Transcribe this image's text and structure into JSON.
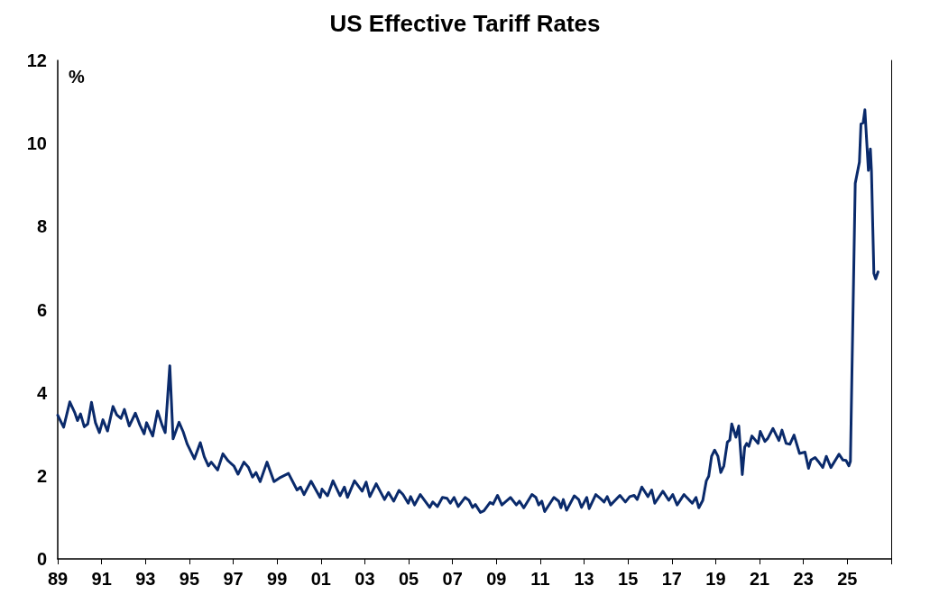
{
  "chart_data": {
    "type": "line",
    "title": "US Effective Tariff Rates",
    "ylabel": "%",
    "xlim": [
      1989,
      2027
    ],
    "ylim": [
      0,
      12
    ],
    "yticks": [
      0,
      2,
      4,
      6,
      8,
      10,
      12
    ],
    "xticks": [
      {
        "value": 1989,
        "label": "89"
      },
      {
        "value": 1991,
        "label": "91"
      },
      {
        "value": 1993,
        "label": "93"
      },
      {
        "value": 1995,
        "label": "95"
      },
      {
        "value": 1997,
        "label": "97"
      },
      {
        "value": 1999,
        "label": "99"
      },
      {
        "value": 2001,
        "label": "01"
      },
      {
        "value": 2003,
        "label": "03"
      },
      {
        "value": 2005,
        "label": "05"
      },
      {
        "value": 2007,
        "label": "07"
      },
      {
        "value": 2009,
        "label": "09"
      },
      {
        "value": 2011,
        "label": "11"
      },
      {
        "value": 2013,
        "label": "13"
      },
      {
        "value": 2015,
        "label": "15"
      },
      {
        "value": 2017,
        "label": "17"
      },
      {
        "value": 2019,
        "label": "19"
      },
      {
        "value": 2021,
        "label": "21"
      },
      {
        "value": 2023,
        "label": "23"
      },
      {
        "value": 2025,
        "label": "25"
      },
      {
        "value": 2027,
        "label": null
      }
    ],
    "grid": false,
    "marker": "none",
    "line_style": "solid",
    "series": [
      {
        "color": "#0a2a6b",
        "x": [
          1989.0,
          1989.27,
          1989.55,
          1989.77,
          1989.9,
          1990.04,
          1990.21,
          1990.37,
          1990.54,
          1990.72,
          1990.9,
          1991.06,
          1991.27,
          1991.52,
          1991.69,
          1991.88,
          1992.04,
          1992.26,
          1992.54,
          1992.75,
          1992.94,
          1993.05,
          1993.33,
          1993.55,
          1993.76,
          1993.9,
          1994.11,
          1994.26,
          1994.53,
          1994.72,
          1994.9,
          1995.23,
          1995.5,
          1995.68,
          1995.87,
          1996.0,
          1996.29,
          1996.53,
          1996.77,
          1997.03,
          1997.22,
          1997.49,
          1997.69,
          1997.88,
          1998.04,
          1998.23,
          1998.54,
          1998.86,
          1999.11,
          1999.52,
          1999.91,
          2000.07,
          2000.23,
          2000.55,
          2000.96,
          2001.05,
          2001.3,
          2001.55,
          2001.87,
          2002.07,
          2002.21,
          2002.53,
          2002.88,
          2003.06,
          2003.23,
          2003.52,
          2003.9,
          2004.08,
          2004.32,
          2004.56,
          2004.74,
          2004.98,
          2005.09,
          2005.27,
          2005.53,
          2005.96,
          2006.1,
          2006.31,
          2006.54,
          2006.75,
          2006.9,
          2007.07,
          2007.26,
          2007.57,
          2007.75,
          2007.91,
          2008.04,
          2008.27,
          2008.43,
          2008.71,
          2008.85,
          2009.05,
          2009.25,
          2009.64,
          2009.91,
          2010.05,
          2010.25,
          2010.62,
          2010.8,
          2010.93,
          2011.07,
          2011.2,
          2011.62,
          2011.84,
          2011.94,
          2012.05,
          2012.2,
          2012.55,
          2012.75,
          2012.88,
          2013.12,
          2013.23,
          2013.53,
          2013.75,
          2013.91,
          2014.05,
          2014.21,
          2014.63,
          2014.88,
          2015.08,
          2015.28,
          2015.42,
          2015.63,
          2015.91,
          2016.08,
          2016.22,
          2016.59,
          2016.86,
          2017.04,
          2017.24,
          2017.55,
          2017.93,
          2018.1,
          2018.23,
          2018.41,
          2018.57,
          2018.68,
          2018.81,
          2018.95,
          2019.1,
          2019.23,
          2019.37,
          2019.53,
          2019.64,
          2019.73,
          2019.92,
          2020.05,
          2020.21,
          2020.32,
          2020.41,
          2020.51,
          2020.65,
          2020.93,
          2021.03,
          2021.24,
          2021.37,
          2021.61,
          2021.88,
          2022.02,
          2022.21,
          2022.38,
          2022.57,
          2022.82,
          2023.07,
          2023.23,
          2023.34,
          2023.53,
          2023.67,
          2023.88,
          2024.04,
          2024.25,
          2024.62,
          2024.8,
          2024.94,
          2025.07,
          2025.14,
          2025.36,
          2025.55,
          2025.62,
          2025.72,
          2025.8,
          2025.96,
          2026.05,
          2026.1,
          2026.21,
          2026.29,
          2026.4
        ],
        "values": [
          3.46,
          3.17,
          3.78,
          3.53,
          3.33,
          3.49,
          3.18,
          3.25,
          3.77,
          3.28,
          3.04,
          3.35,
          3.08,
          3.67,
          3.47,
          3.38,
          3.6,
          3.2,
          3.51,
          3.22,
          3.01,
          3.28,
          2.96,
          3.56,
          3.22,
          3.04,
          4.65,
          2.89,
          3.29,
          3.06,
          2.77,
          2.41,
          2.8,
          2.46,
          2.24,
          2.33,
          2.14,
          2.53,
          2.36,
          2.24,
          2.04,
          2.33,
          2.21,
          1.97,
          2.08,
          1.86,
          2.33,
          1.86,
          1.95,
          2.06,
          1.66,
          1.73,
          1.55,
          1.87,
          1.48,
          1.68,
          1.52,
          1.88,
          1.52,
          1.73,
          1.48,
          1.88,
          1.63,
          1.85,
          1.5,
          1.81,
          1.43,
          1.6,
          1.39,
          1.65,
          1.55,
          1.34,
          1.5,
          1.3,
          1.55,
          1.24,
          1.37,
          1.26,
          1.48,
          1.46,
          1.34,
          1.48,
          1.26,
          1.48,
          1.41,
          1.24,
          1.31,
          1.12,
          1.16,
          1.36,
          1.32,
          1.53,
          1.3,
          1.48,
          1.3,
          1.39,
          1.23,
          1.55,
          1.48,
          1.3,
          1.39,
          1.14,
          1.48,
          1.39,
          1.23,
          1.43,
          1.17,
          1.52,
          1.43,
          1.24,
          1.48,
          1.21,
          1.55,
          1.45,
          1.37,
          1.5,
          1.3,
          1.53,
          1.37,
          1.5,
          1.53,
          1.43,
          1.73,
          1.5,
          1.66,
          1.34,
          1.63,
          1.41,
          1.55,
          1.3,
          1.55,
          1.34,
          1.48,
          1.23,
          1.41,
          1.88,
          1.99,
          2.47,
          2.62,
          2.47,
          2.08,
          2.24,
          2.81,
          2.86,
          3.25,
          2.93,
          3.2,
          2.03,
          2.69,
          2.78,
          2.71,
          2.96,
          2.78,
          3.07,
          2.83,
          2.9,
          3.14,
          2.85,
          3.1,
          2.78,
          2.76,
          2.98,
          2.54,
          2.57,
          2.18,
          2.38,
          2.44,
          2.35,
          2.2,
          2.47,
          2.2,
          2.52,
          2.38,
          2.37,
          2.24,
          2.35,
          9.04,
          9.55,
          10.47,
          10.5,
          10.81,
          9.35,
          9.87,
          9.33,
          6.87,
          6.74,
          6.91
        ]
      }
    ]
  }
}
